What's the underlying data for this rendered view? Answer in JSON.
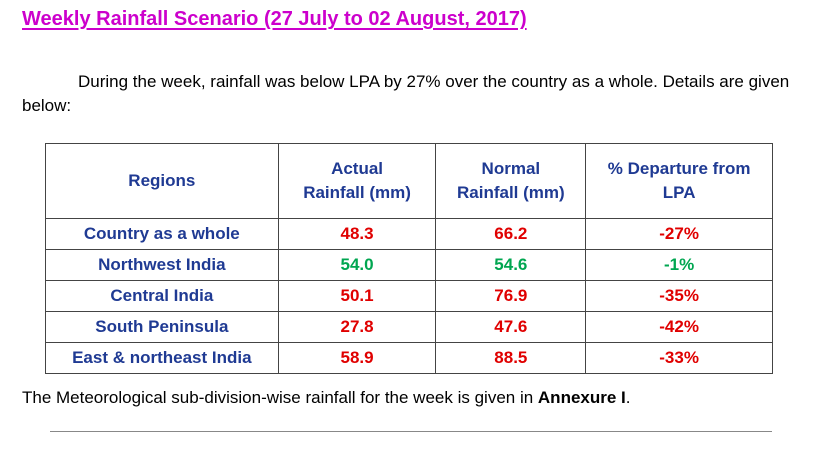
{
  "title": "Weekly Rainfall Scenario (27 July to 02 August, 2017)",
  "intro": "During the week, rainfall was below LPA by 27% over the country as a whole. Details are given below:",
  "table": {
    "headers": {
      "regions": "Regions",
      "actual_line1": "Actual",
      "actual_line2": "Rainfall (mm)",
      "normal_line1": "Normal",
      "normal_line2": "Rainfall (mm)",
      "departure_line1": "% Departure from",
      "departure_line2": "LPA"
    },
    "rows": [
      {
        "region": "Country as a whole",
        "actual": "48.3",
        "normal": "66.2",
        "departure": "-27%",
        "status_color": "red"
      },
      {
        "region": "Northwest India",
        "actual": "54.0",
        "normal": "54.6",
        "departure": "-1%",
        "status_color": "green"
      },
      {
        "region": "Central India",
        "actual": "50.1",
        "normal": "76.9",
        "departure": "-35%",
        "status_color": "red"
      },
      {
        "region": "South Peninsula",
        "actual": "27.8",
        "normal": "47.6",
        "departure": "-42%",
        "status_color": "red"
      },
      {
        "region": "East & northeast India",
        "actual": "58.9",
        "normal": "88.5",
        "departure": "-33%",
        "status_color": "red"
      }
    ]
  },
  "colors": {
    "title": "#cc00cc",
    "header_text": "#1f3a93",
    "red": "#e00000",
    "green": "#00a650"
  },
  "footer": {
    "text": "The Meteorological sub-division-wise rainfall for the week is given in ",
    "annexure": "Annexure I",
    "end": "."
  }
}
